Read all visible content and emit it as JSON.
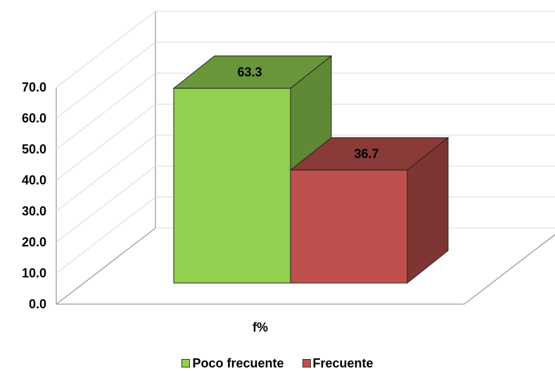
{
  "chart_data": {
    "type": "bar",
    "style": "3d-clustered",
    "categories": [
      "f%"
    ],
    "series": [
      {
        "name": "Poco frecuente",
        "values": [
          63.3
        ],
        "color": "#92D050"
      },
      {
        "name": "Frecuente",
        "values": [
          36.7
        ],
        "color": "#C0504D"
      }
    ],
    "data_labels": [
      "63.3",
      "36.7"
    ],
    "xlabel": "",
    "ylabel": "",
    "ylim": [
      0,
      70
    ],
    "yticks": [
      "0.0",
      "10.0",
      "20.0",
      "30.0",
      "40.0",
      "50.0",
      "60.0",
      "70.0"
    ],
    "grid": true,
    "legend_position": "bottom"
  }
}
